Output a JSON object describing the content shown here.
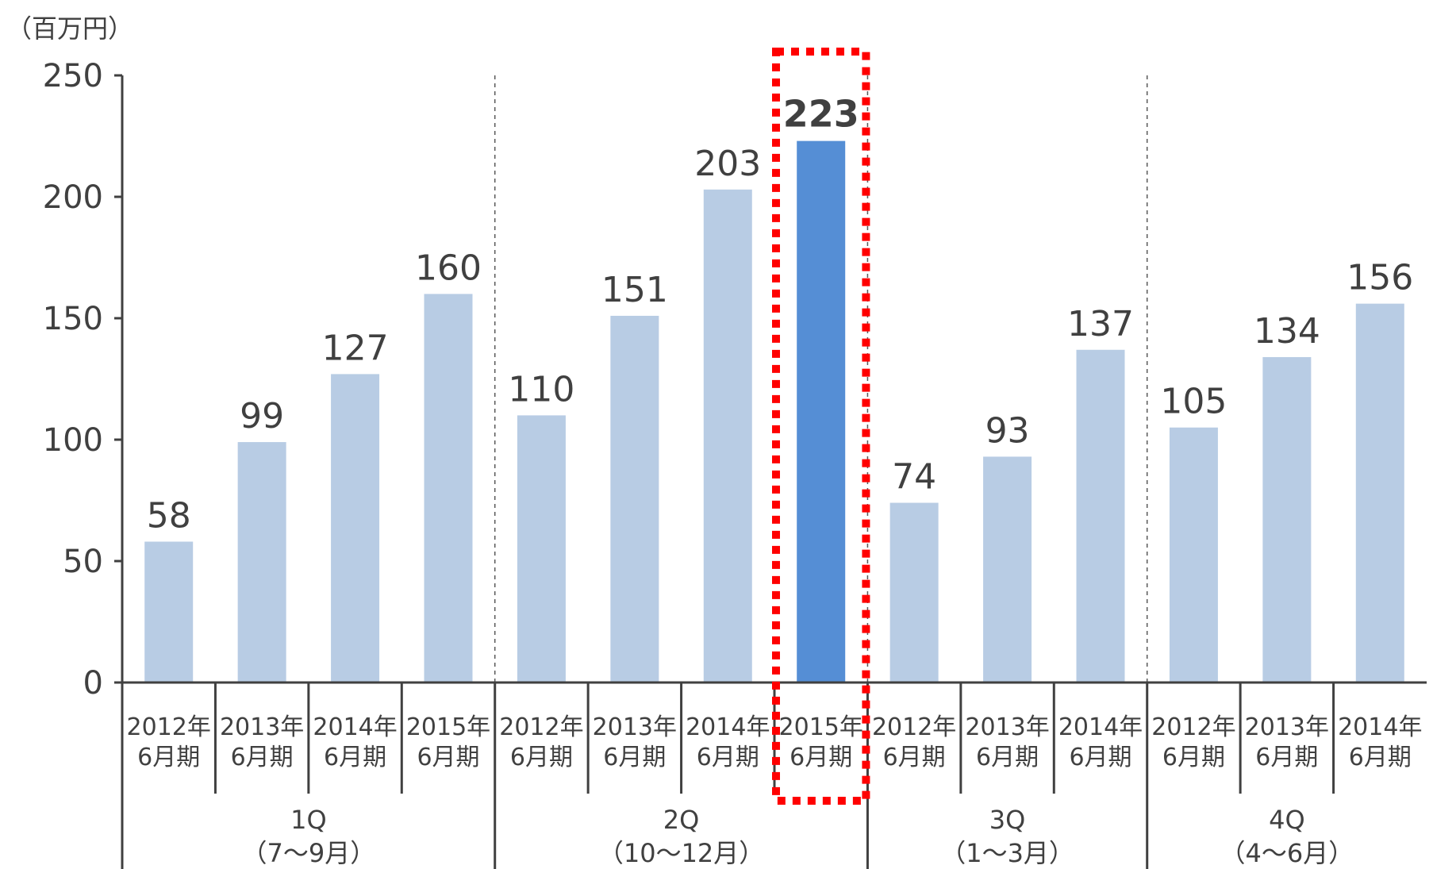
{
  "chart_data": {
    "type": "bar",
    "unit_label": "（百万円）",
    "ylim": [
      0,
      250
    ],
    "yticks": [
      "0",
      "50",
      "100",
      "150",
      "200",
      "250"
    ],
    "highlight_index": 7,
    "colors": {
      "bar": "#b8cce4",
      "bar_highlight": "#558ed5",
      "highlight_frame": "#ff0000",
      "axis": "#404040",
      "text": "#404040"
    },
    "categories": [
      {
        "year": "2012年",
        "period": "6月期",
        "value": 58
      },
      {
        "year": "2013年",
        "period": "6月期",
        "value": 99
      },
      {
        "year": "2014年",
        "period": "6月期",
        "value": 127
      },
      {
        "year": "2015年",
        "period": "6月期",
        "value": 160
      },
      {
        "year": "2012年",
        "period": "6月期",
        "value": 110
      },
      {
        "year": "2013年",
        "period": "6月期",
        "value": 151
      },
      {
        "year": "2014年",
        "period": "6月期",
        "value": 203
      },
      {
        "year": "2015年",
        "period": "6月期",
        "value": 223
      },
      {
        "year": "2012年",
        "period": "6月期",
        "value": 74
      },
      {
        "year": "2013年",
        "period": "6月期",
        "value": 93
      },
      {
        "year": "2014年",
        "period": "6月期",
        "value": 137
      },
      {
        "year": "2012年",
        "period": "6月期",
        "value": 105
      },
      {
        "year": "2013年",
        "period": "6月期",
        "value": 134
      },
      {
        "year": "2014年",
        "period": "6月期",
        "value": 156
      }
    ],
    "groups": [
      {
        "label": "1Q",
        "sublabel": "（7〜9月）",
        "count": 4
      },
      {
        "label": "2Q",
        "sublabel": "（10〜12月）",
        "count": 4
      },
      {
        "label": "3Q",
        "sublabel": "（1〜3月）",
        "count": 3
      },
      {
        "label": "4Q",
        "sublabel": "（4〜6月）",
        "count": 3
      }
    ]
  }
}
